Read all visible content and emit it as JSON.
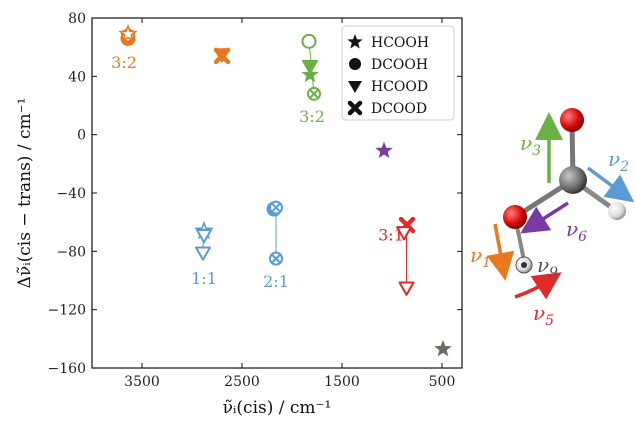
{
  "chart_data": {
    "type": "scatter",
    "xlabel": "ν̃ᵢ(cis) / cm⁻¹",
    "ylabel": "Δν̃ᵢ(cis − trans) / cm⁻¹",
    "xlim": [
      4000,
      300
    ],
    "ylim": [
      -160,
      80
    ],
    "x_reversed": true,
    "x_ticks": [
      3500,
      2500,
      1500,
      500
    ],
    "y_ticks": [
      80,
      40,
      0,
      -40,
      -80,
      -120,
      -160
    ],
    "grid": false,
    "legend_placement": "top-right",
    "series": [
      {
        "name": "HCOOH",
        "marker": "star"
      },
      {
        "name": "DCOOH",
        "marker": "circle"
      },
      {
        "name": "HCOOD",
        "marker": "triangle-down"
      },
      {
        "name": "DCOOD",
        "marker": "x"
      }
    ],
    "points": [
      {
        "mode": "ν1",
        "series": "DCOOH",
        "x": 3640,
        "y": 66,
        "color": "#e8771d",
        "filled": true
      },
      {
        "mode": "ν1",
        "series": "DCOOD",
        "x": 3640,
        "y": 68,
        "color": "#e8771d",
        "filled": false
      },
      {
        "mode": "ν1",
        "series": "HCOOH",
        "x": 3640,
        "y": 69,
        "color": "#e8771d",
        "filled": false
      },
      {
        "mode": "ν1",
        "series": "HCOOD",
        "x": 2700,
        "y": 55,
        "color": "#e8771d",
        "filled": true
      },
      {
        "mode": "ν1",
        "series": "DCOOD",
        "x": 2700,
        "y": 54,
        "color": "#e8771d",
        "filled": true
      },
      {
        "mode": "ν3",
        "series": "DCOOH",
        "x": 1830,
        "y": 64,
        "color": "#6ab045",
        "filled": false
      },
      {
        "mode": "ν3",
        "series": "HCOOD",
        "x": 1820,
        "y": 47,
        "color": "#6ab045",
        "filled": true
      },
      {
        "mode": "ν3",
        "series": "HCOOH",
        "x": 1820,
        "y": 41,
        "color": "#6ab045",
        "filled": true
      },
      {
        "mode": "ν3",
        "series": "DCOOD",
        "x": 1780,
        "y": 28,
        "color": "#6ab045",
        "filled": false
      },
      {
        "mode": "ν6",
        "series": "HCOOH",
        "x": 1080,
        "y": -11,
        "color": "#7a3aa3",
        "filled": true
      },
      {
        "mode": "ν2",
        "series": "HCOOH",
        "x": 2880,
        "y": -66,
        "color": "#5b9bd5",
        "filled": false
      },
      {
        "mode": "ν2",
        "series": "HCOOD",
        "x": 2880,
        "y": -69,
        "color": "#5b9bd5",
        "filled": false
      },
      {
        "mode": "ν2",
        "series": "HCOOD",
        "x": 2890,
        "y": -81,
        "color": "#5b9bd5",
        "filled": false
      },
      {
        "mode": "ν2",
        "series": "DCOOH",
        "x": 2180,
        "y": -51,
        "color": "#5b9bd5",
        "filled": true
      },
      {
        "mode": "ν2",
        "series": "DCOOD",
        "x": 2160,
        "y": -50,
        "color": "#5b9bd5",
        "filled": false
      },
      {
        "mode": "ν2",
        "series": "DCOOD",
        "x": 2160,
        "y": -85,
        "color": "#5b9bd5",
        "filled": false
      },
      {
        "mode": "ν5",
        "series": "DCOOD",
        "x": 850,
        "y": -62,
        "color": "#e02a2a",
        "filled": true
      },
      {
        "mode": "ν5",
        "series": "HCOOD",
        "x": 880,
        "y": -67,
        "color": "#e02a2a",
        "filled": false
      },
      {
        "mode": "ν5",
        "series": "HCOOD",
        "x": 855,
        "y": -105,
        "color": "#e02a2a",
        "filled": false
      },
      {
        "mode": "ν9",
        "series": "HCOOH",
        "x": 490,
        "y": -147,
        "color": "#6f6a5f",
        "filled": true
      }
    ],
    "connectors": [
      {
        "x1": 1830,
        "y1": 64,
        "x2": 1780,
        "y2": 28,
        "color": "#6ab045"
      },
      {
        "x1": 2885,
        "y1": -66,
        "x2": 2890,
        "y2": -81,
        "color": "#5b9bd5"
      },
      {
        "x1": 2160,
        "y1": -50,
        "x2": 2160,
        "y2": -85,
        "color": "#5b9bd5"
      },
      {
        "x1": 855,
        "y1": -62,
        "x2": 855,
        "y2": -105,
        "color": "#e02a2a"
      }
    ],
    "annotations": [
      {
        "text": "3:2",
        "x": 3680,
        "y": 49,
        "color": "#e8771d"
      },
      {
        "text": "3:2",
        "x": 1800,
        "y": 12,
        "color": "#6ab045"
      },
      {
        "text": "1:1",
        "x": 2880,
        "y": -99,
        "color": "#5b9bd5"
      },
      {
        "text": "2:1",
        "x": 2160,
        "y": -101,
        "color": "#5b9bd5"
      },
      {
        "text": "3:1",
        "x": 1010,
        "y": -69,
        "color": "#e02a2a"
      }
    ]
  },
  "molecule": {
    "modes": [
      {
        "label": "ν3",
        "base": "ν",
        "sub": "3",
        "color": "#6ab045"
      },
      {
        "label": "ν2",
        "base": "ν",
        "sub": "2",
        "color": "#5b9bd5"
      },
      {
        "label": "ν6",
        "base": "ν",
        "sub": "6",
        "color": "#7a3aa3"
      },
      {
        "label": "ν1",
        "base": "ν",
        "sub": "1",
        "color": "#e8771d"
      },
      {
        "label": "ν9",
        "base": "ν",
        "sub": "9",
        "color": "#555555"
      },
      {
        "label": "ν5",
        "base": "ν",
        "sub": "5",
        "color": "#e02a2a"
      }
    ]
  }
}
